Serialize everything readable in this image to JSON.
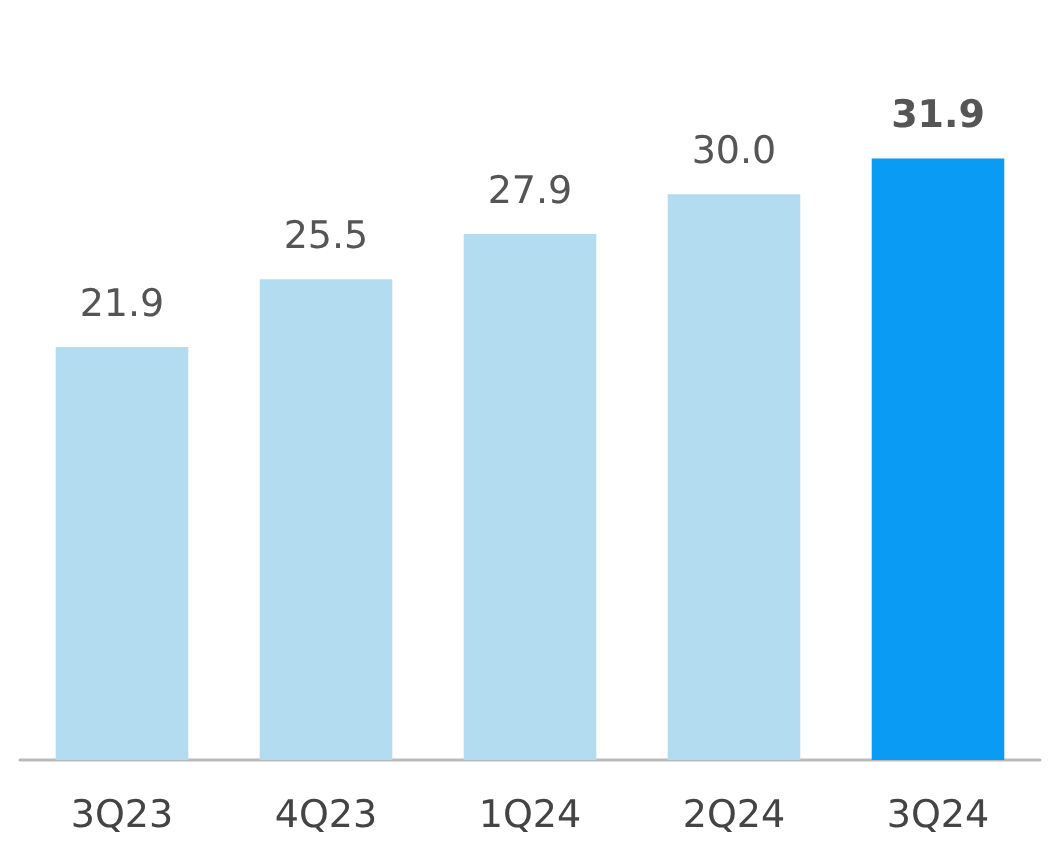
{
  "chart_data": {
    "type": "bar",
    "categories": [
      "3Q23",
      "4Q23",
      "1Q24",
      "2Q24",
      "3Q24"
    ],
    "values": [
      21.9,
      25.5,
      27.9,
      30.0,
      31.9
    ],
    "colors": [
      "#b4dcf0",
      "#b4dcf0",
      "#b4dcf0",
      "#b4dcf0",
      "#0a9bf5"
    ],
    "value_labels": [
      "21.9",
      "25.5",
      "27.9",
      "30.0",
      "31.9"
    ]
  }
}
